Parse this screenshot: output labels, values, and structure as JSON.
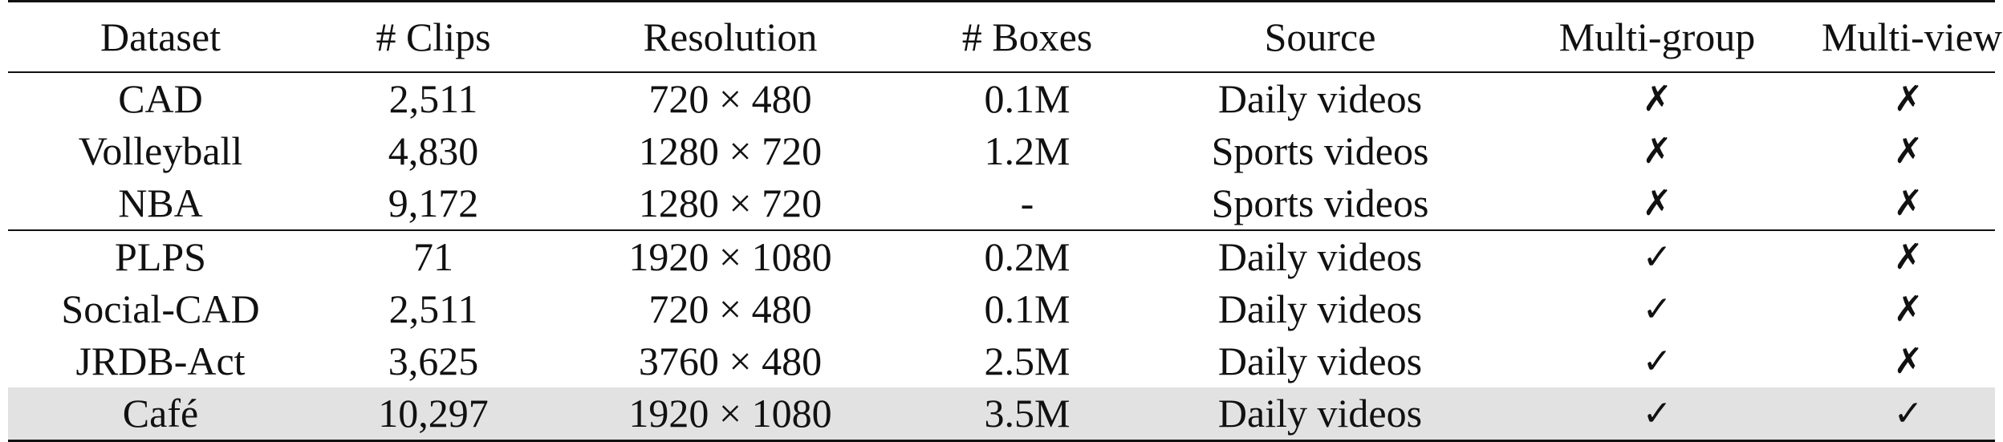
{
  "table": {
    "headers": [
      "Dataset",
      "# Clips",
      "Resolution",
      "# Boxes",
      "Source",
      "Multi-group",
      "Multi-view"
    ],
    "rows": [
      {
        "dataset": "CAD",
        "clips": "2,511",
        "resolution": "720 × 480",
        "boxes": "0.1M",
        "source": "Daily videos",
        "multi_group": "✗",
        "multi_view": "✗"
      },
      {
        "dataset": "Volleyball",
        "clips": "4,830",
        "resolution": "1280 × 720",
        "boxes": "1.2M",
        "source": "Sports videos",
        "multi_group": "✗",
        "multi_view": "✗"
      },
      {
        "dataset": "NBA",
        "clips": "9,172",
        "resolution": "1280 × 720",
        "boxes": "-",
        "source": "Sports videos",
        "multi_group": "✗",
        "multi_view": "✗"
      },
      {
        "dataset": "PLPS",
        "clips": "71",
        "resolution": "1920 × 1080",
        "boxes": "0.2M",
        "source": "Daily videos",
        "multi_group": "✓",
        "multi_view": "✗"
      },
      {
        "dataset": "Social-CAD",
        "clips": "2,511",
        "resolution": "720 × 480",
        "boxes": "0.1M",
        "source": "Daily videos",
        "multi_group": "✓",
        "multi_view": "✗"
      },
      {
        "dataset": "JRDB-Act",
        "clips": "3,625",
        "resolution": "3760 × 480",
        "boxes": "2.5M",
        "source": "Daily videos",
        "multi_group": "✓",
        "multi_view": "✗"
      },
      {
        "dataset": "Café",
        "clips": "10,297",
        "resolution": "1920 × 1080",
        "boxes": "3.5M",
        "source": "Daily videos",
        "multi_group": "✓",
        "multi_view": "✓"
      }
    ],
    "highlight_color": "#e2e2e2"
  }
}
